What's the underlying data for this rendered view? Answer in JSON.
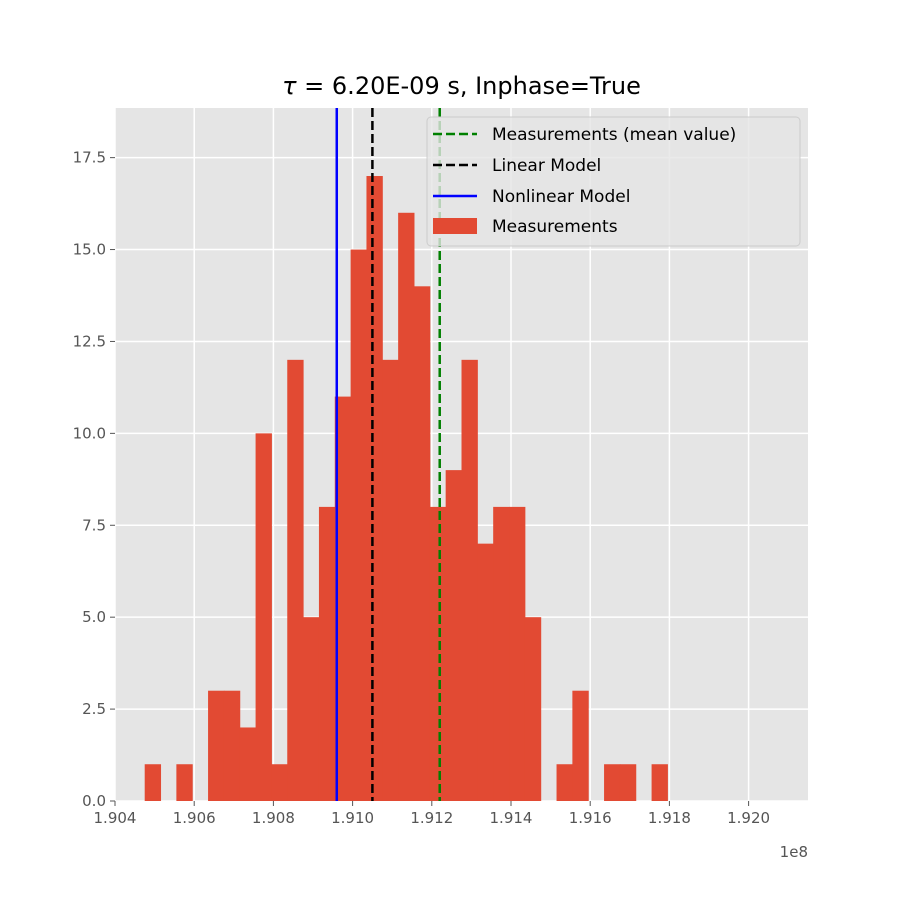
{
  "chart_data": {
    "type": "bar",
    "title_prefix": "τ",
    "title_rest": " = 6.20E-09 s, Inphase=True",
    "xlabel": "",
    "ylabel": "",
    "x_offset_label": "1e8",
    "xlim": [
      1.904,
      1.9215
    ],
    "ylim": [
      0,
      18.85
    ],
    "x_tick_labels": [
      "1.904",
      "1.906",
      "1.908",
      "1.910",
      "1.912",
      "1.914",
      "1.916",
      "1.918",
      "1.920"
    ],
    "x_ticks": [
      1.904,
      1.906,
      1.908,
      1.91,
      1.912,
      1.914,
      1.916,
      1.918,
      1.92
    ],
    "y_tick_labels": [
      "0.0",
      "2.5",
      "5.0",
      "7.5",
      "10.0",
      "12.5",
      "15.0",
      "17.5"
    ],
    "y_ticks": [
      0.0,
      2.5,
      5.0,
      7.5,
      10.0,
      12.5,
      15.0,
      17.5
    ],
    "grid": true,
    "legend_position": "top-right",
    "histogram": {
      "name": "Measurements",
      "color": "#e24a33",
      "bin_start": 1.90475,
      "bin_width": 0.0004,
      "counts": [
        1,
        0,
        1,
        0,
        3,
        3,
        2,
        10,
        1,
        12,
        5,
        8,
        11,
        15,
        17,
        12,
        16,
        14,
        8,
        9,
        12,
        7,
        8,
        8,
        5,
        0,
        1,
        3,
        0,
        1,
        1,
        0,
        1
      ]
    },
    "lines": [
      {
        "name": "Measurements (mean value)",
        "x": 1.9122,
        "color": "#008000",
        "style": "dashed"
      },
      {
        "name": " Linear Model",
        "x": 1.9105,
        "color": "#000000",
        "style": "dashed"
      },
      {
        "name": "Nonlinear Model",
        "x": 1.9096,
        "color": "#0000ff",
        "style": "solid"
      }
    ],
    "legend_entries": [
      "Measurements (mean value)",
      " Linear Model",
      "Nonlinear Model",
      "Measurements"
    ]
  }
}
